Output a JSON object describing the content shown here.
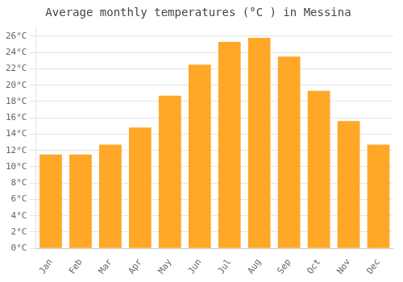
{
  "chart_data": {
    "type": "bar",
    "title": "Average monthly temperatures (°C ) in Messina",
    "categories": [
      "Jan",
      "Feb",
      "Mar",
      "Apr",
      "May",
      "Jun",
      "Jul",
      "Aug",
      "Sep",
      "Oct",
      "Nov",
      "Dec"
    ],
    "values": [
      11.5,
      11.5,
      12.7,
      14.8,
      18.7,
      22.5,
      25.3,
      25.8,
      23.5,
      19.3,
      15.6,
      12.7
    ],
    "color": "#FFA726",
    "ylim": [
      0,
      27
    ],
    "yticks": [
      {
        "value": 0,
        "label": "0°C"
      },
      {
        "value": 2,
        "label": "2°C"
      },
      {
        "value": 4,
        "label": "4°C"
      },
      {
        "value": 6,
        "label": "6°C"
      },
      {
        "value": 8,
        "label": "8°C"
      },
      {
        "value": 10,
        "label": "10°C"
      },
      {
        "value": 12,
        "label": "12°C"
      },
      {
        "value": 14,
        "label": "14°C"
      },
      {
        "value": 16,
        "label": "16°C"
      },
      {
        "value": 18,
        "label": "18°C"
      },
      {
        "value": 20,
        "label": "20°C"
      },
      {
        "value": 22,
        "label": "22°C"
      },
      {
        "value": 24,
        "label": "24°C"
      },
      {
        "value": 26,
        "label": "26°C"
      }
    ],
    "grid": true
  }
}
